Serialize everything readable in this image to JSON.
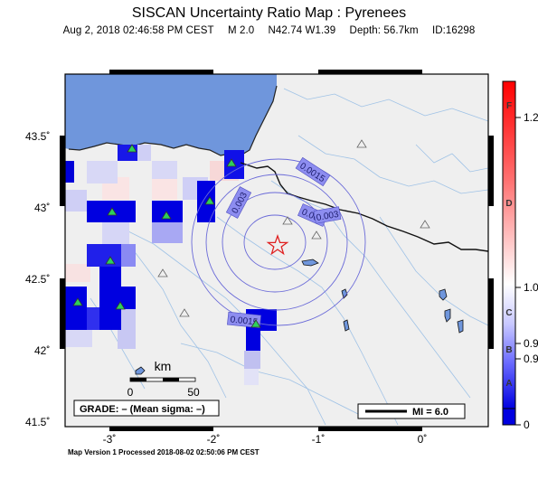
{
  "header": {
    "title": "SISCAN Uncertainty Ratio Map : Pyrenees",
    "date": "Aug  2, 2018 02:46:58 PM CEST",
    "magnitude": "M 2.0",
    "location": "N42.74 W1.39",
    "depth": "Depth: 56.7km",
    "event_id": "ID:16298"
  },
  "axes": {
    "lat_labels": [
      "43.5˚",
      "43˚",
      "42.5˚",
      "42˚",
      "41.5˚"
    ],
    "lon_labels": [
      "-3˚",
      "-2˚",
      "-1˚",
      "0˚"
    ]
  },
  "contours": {
    "labels": [
      "0.0015",
      "0.003",
      "0.003",
      "0.003",
      "0.0015"
    ]
  },
  "scale": {
    "unit": "km",
    "start": "0",
    "end": "50"
  },
  "grade": {
    "text": "GRADE: – (Mean sigma: –)"
  },
  "mmi_legend": {
    "text": "MI = 6.0"
  },
  "colorbar": {
    "grades": [
      "F",
      "D",
      "C",
      "B",
      "A"
    ],
    "values": [
      "1.2",
      "1.0",
      "0.9",
      "0.9",
      "0"
    ]
  },
  "footer": {
    "text": "Map Version 1 Processed 2018-08-02 02:50:06 PM CEST"
  },
  "colors": {
    "sea": "#6f96dc",
    "land": "#efefef",
    "high": "#ff0000",
    "low": "#0000e0"
  }
}
